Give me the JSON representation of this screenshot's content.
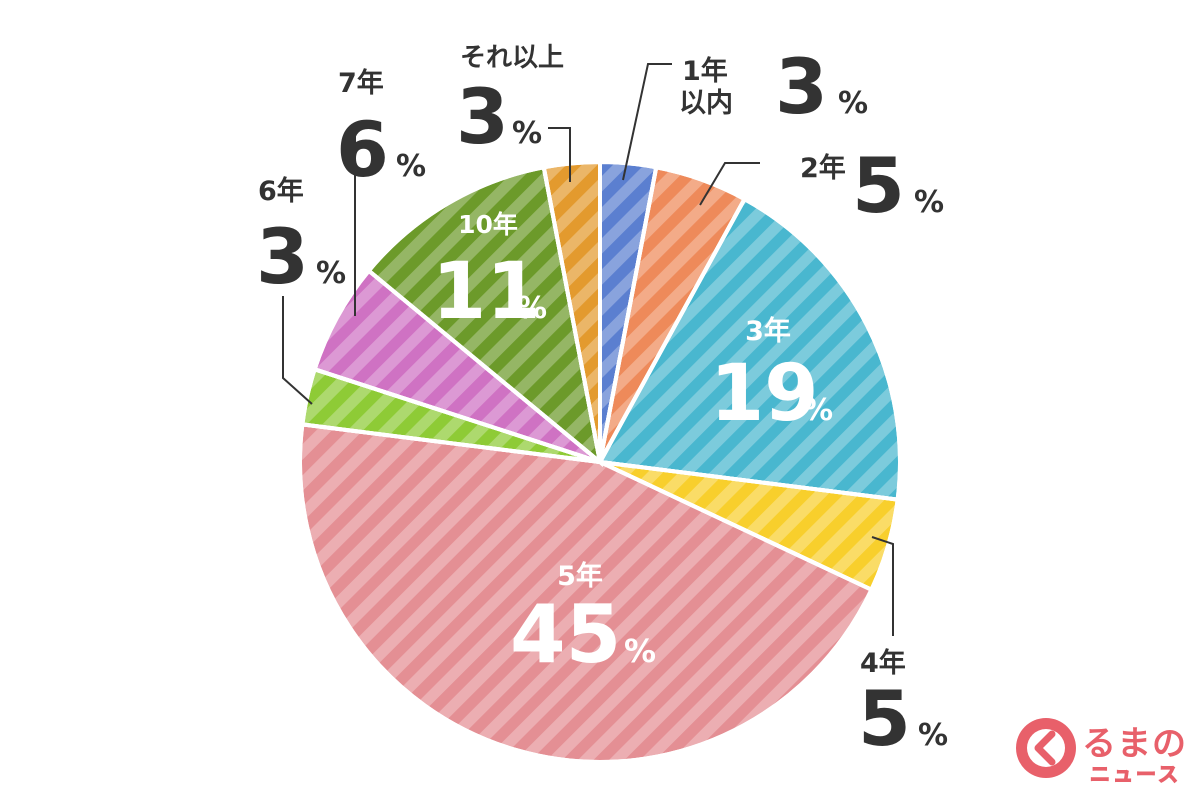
{
  "chart_data": {
    "type": "pie",
    "title": "",
    "unit": "%",
    "start": "top, clockwise",
    "slices": [
      {
        "label": "1年以内",
        "label_lines": [
          "1年",
          "以内"
        ],
        "value": 3,
        "color": "#5b7fd0",
        "label_style": "outside-right"
      },
      {
        "label": "2年",
        "label_lines": [
          "2年"
        ],
        "value": 5,
        "color": "#ee8a5a",
        "label_style": "outside-right"
      },
      {
        "label": "3年",
        "label_lines": [
          "3年"
        ],
        "value": 19,
        "color": "#49b7cf",
        "label_style": "inside"
      },
      {
        "label": "4年",
        "label_lines": [
          "4年"
        ],
        "value": 5,
        "color": "#f8cf2c",
        "label_style": "outside-below"
      },
      {
        "label": "5年",
        "label_lines": [
          "5年"
        ],
        "value": 45,
        "color": "#e48f94",
        "label_style": "inside"
      },
      {
        "label": "6年",
        "label_lines": [
          "6年"
        ],
        "value": 3,
        "color": "#8ecb36",
        "label_style": "outside-left"
      },
      {
        "label": "7年",
        "label_lines": [
          "7年"
        ],
        "value": 6,
        "color": "#cf72c3",
        "label_style": "outside-left"
      },
      {
        "label": "10年",
        "label_lines": [
          "10年"
        ],
        "value": 11,
        "color": "#6c9a2a",
        "label_style": "inside"
      },
      {
        "label": "それ以上",
        "label_lines": [
          "それ以上"
        ],
        "value": 3,
        "color": "#e39a2e",
        "label_style": "outside-left"
      }
    ]
  },
  "logo": {
    "name": "くるまの",
    "name_visible": "るまの",
    "sub": "ニュース",
    "color": "#e8606a"
  }
}
